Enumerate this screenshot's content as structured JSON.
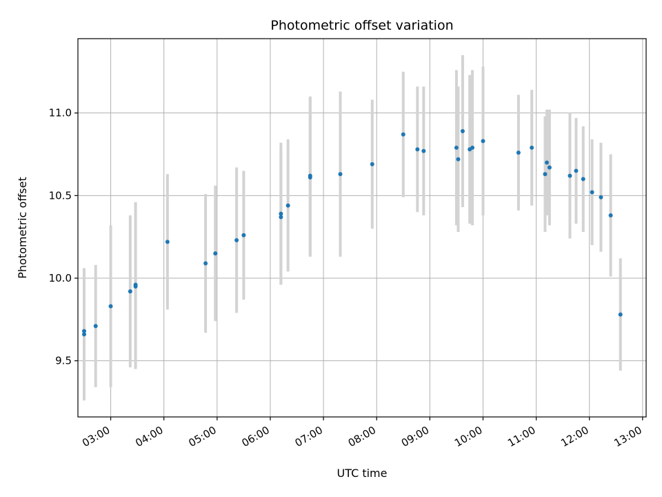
{
  "chart_data": {
    "type": "scatter",
    "title": "Photometric offset variation",
    "xlabel": "UTC time",
    "ylabel": "Photometric offset",
    "xlim": [
      "02:23",
      "13:04"
    ],
    "ylim": [
      9.16,
      11.45
    ],
    "grid": true,
    "x_ticks": [
      "03:00",
      "04:00",
      "05:00",
      "06:00",
      "07:00",
      "08:00",
      "09:00",
      "10:00",
      "11:00",
      "12:00",
      "13:00"
    ],
    "y_ticks": [
      9.5,
      10.0,
      10.5,
      11.0
    ],
    "y_tick_labels": [
      "9.5",
      "10.0",
      "10.5",
      "11.0"
    ],
    "colors": {
      "point": "#1f77b4",
      "error_bar": "#d3d3d3",
      "grid": "#b0b0b0"
    },
    "points": [
      {
        "t": "02:30",
        "y": 9.66,
        "yerr": 0.4
      },
      {
        "t": "02:30",
        "y": 9.68,
        "yerr": 0.38
      },
      {
        "t": "02:43",
        "y": 9.71,
        "yerr": 0.37
      },
      {
        "t": "03:00",
        "y": 9.83,
        "yerr": 0.49
      },
      {
        "t": "03:22",
        "y": 9.92,
        "yerr": 0.46
      },
      {
        "t": "03:28",
        "y": 9.95,
        "yerr": 0.5
      },
      {
        "t": "03:28",
        "y": 9.96,
        "yerr": 0.5
      },
      {
        "t": "04:04",
        "y": 10.22,
        "yerr": 0.41
      },
      {
        "t": "04:47",
        "y": 10.09,
        "yerr": 0.42
      },
      {
        "t": "04:58",
        "y": 10.15,
        "yerr": 0.41
      },
      {
        "t": "05:22",
        "y": 10.23,
        "yerr": 0.44
      },
      {
        "t": "05:30",
        "y": 10.26,
        "yerr": 0.39
      },
      {
        "t": "06:12",
        "y": 10.37,
        "yerr": 0.41
      },
      {
        "t": "06:12",
        "y": 10.39,
        "yerr": 0.43
      },
      {
        "t": "06:20",
        "y": 10.44,
        "yerr": 0.4
      },
      {
        "t": "06:45",
        "y": 10.61,
        "yerr": 0.48
      },
      {
        "t": "06:45",
        "y": 10.62,
        "yerr": 0.48
      },
      {
        "t": "07:19",
        "y": 10.63,
        "yerr": 0.5
      },
      {
        "t": "07:55",
        "y": 10.69,
        "yerr": 0.39
      },
      {
        "t": "08:30",
        "y": 10.87,
        "yerr": 0.38
      },
      {
        "t": "08:46",
        "y": 10.78,
        "yerr": 0.38
      },
      {
        "t": "08:53",
        "y": 10.77,
        "yerr": 0.39
      },
      {
        "t": "09:30",
        "y": 10.79,
        "yerr": 0.47
      },
      {
        "t": "09:32",
        "y": 10.72,
        "yerr": 0.44
      },
      {
        "t": "09:37",
        "y": 10.89,
        "yerr": 0.46
      },
      {
        "t": "09:45",
        "y": 10.78,
        "yerr": 0.45
      },
      {
        "t": "09:48",
        "y": 10.79,
        "yerr": 0.47
      },
      {
        "t": "10:00",
        "y": 10.83,
        "yerr": 0.45
      },
      {
        "t": "10:40",
        "y": 10.76,
        "yerr": 0.35
      },
      {
        "t": "10:55",
        "y": 10.79,
        "yerr": 0.35
      },
      {
        "t": "11:10",
        "y": 10.63,
        "yerr": 0.35
      },
      {
        "t": "11:12",
        "y": 10.7,
        "yerr": 0.32
      },
      {
        "t": "11:15",
        "y": 10.67,
        "yerr": 0.35
      },
      {
        "t": "11:38",
        "y": 10.62,
        "yerr": 0.38
      },
      {
        "t": "11:45",
        "y": 10.65,
        "yerr": 0.32
      },
      {
        "t": "11:53",
        "y": 10.6,
        "yerr": 0.32
      },
      {
        "t": "12:03",
        "y": 10.52,
        "yerr": 0.32
      },
      {
        "t": "12:13",
        "y": 10.49,
        "yerr": 0.33
      },
      {
        "t": "12:24",
        "y": 10.38,
        "yerr": 0.37
      },
      {
        "t": "12:35",
        "y": 9.78,
        "yerr": 0.34
      }
    ]
  }
}
